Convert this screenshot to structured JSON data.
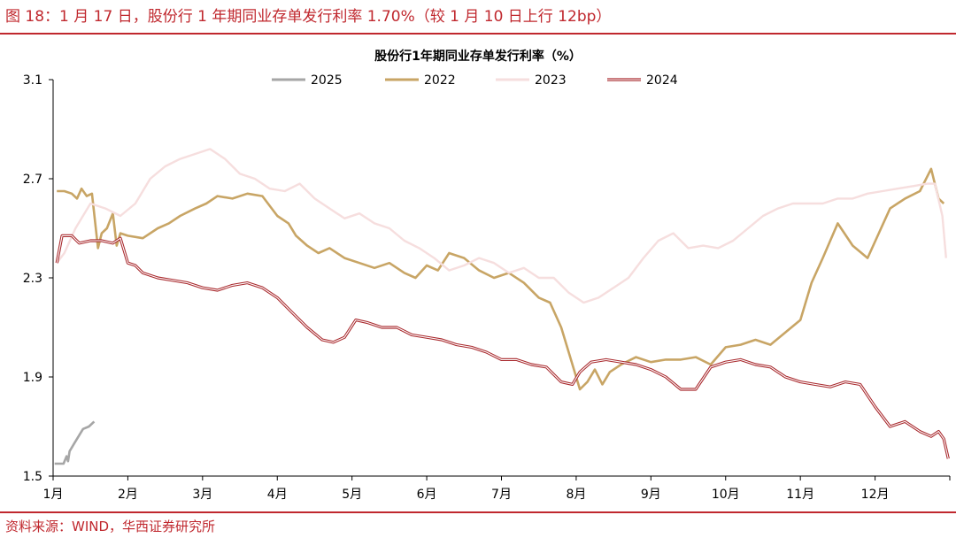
{
  "figure_title": "图 18：1 月 17 日，股份行 1 年期同业存单发行利率 1.70%（较 1 月 10 日上行 12bp）",
  "source": "资料来源：WIND，华西证券研究所",
  "colors": {
    "accent": "#c0282e",
    "s2025": "#a6a6a6",
    "s2022": "#c8a565",
    "s2023": "#f6dede",
    "s2024": "#a8282c"
  },
  "chart_data": {
    "type": "line",
    "title": "股份行1年期同业存单发行利率（%）",
    "xlabel": "",
    "ylabel": "",
    "ylim": [
      1.5,
      3.1
    ],
    "yticks": [
      "3.1",
      "2.7",
      "2.3",
      "1.9",
      "1.5"
    ],
    "ytick_values": [
      3.1,
      2.7,
      2.3,
      1.9,
      1.5
    ],
    "xlim": [
      0,
      12
    ],
    "xticks": [
      "1月",
      "2月",
      "3月",
      "4月",
      "5月",
      "6月",
      "7月",
      "8月",
      "9月",
      "10月",
      "11月",
      "12月"
    ],
    "xtick_values": [
      0,
      1,
      2,
      3,
      4,
      5,
      6,
      7,
      8,
      9,
      10,
      11
    ],
    "legend_position": "top",
    "grid": false,
    "series": [
      {
        "name": "2025",
        "color": "#a6a6a6",
        "style": "solid",
        "x": [
          0.02,
          0.08,
          0.14,
          0.18,
          0.2,
          0.22,
          0.28,
          0.34,
          0.4,
          0.48,
          0.55
        ],
        "y": [
          1.55,
          1.55,
          1.55,
          1.58,
          1.56,
          1.6,
          1.63,
          1.66,
          1.69,
          1.7,
          1.72
        ]
      },
      {
        "name": "2022",
        "color": "#c8a565",
        "style": "solid",
        "x": [
          0.05,
          0.15,
          0.25,
          0.32,
          0.38,
          0.45,
          0.52,
          0.6,
          0.65,
          0.72,
          0.8,
          0.85,
          0.9,
          1.0,
          1.2,
          1.4,
          1.55,
          1.7,
          1.9,
          2.05,
          2.2,
          2.4,
          2.6,
          2.8,
          3.0,
          3.15,
          3.25,
          3.4,
          3.55,
          3.7,
          3.9,
          4.1,
          4.3,
          4.5,
          4.7,
          4.85,
          5.0,
          5.15,
          5.3,
          5.5,
          5.7,
          5.9,
          6.1,
          6.3,
          6.5,
          6.65,
          6.8,
          6.95,
          7.05,
          7.15,
          7.25,
          7.35,
          7.45,
          7.6,
          7.8,
          8.0,
          8.2,
          8.4,
          8.6,
          8.8,
          9.0,
          9.2,
          9.4,
          9.6,
          9.8,
          10.0,
          10.15,
          10.3,
          10.5,
          10.7,
          10.9,
          11.05,
          11.2,
          11.4,
          11.6,
          11.75,
          11.85,
          11.92
        ],
        "y": [
          2.65,
          2.65,
          2.64,
          2.62,
          2.66,
          2.63,
          2.64,
          2.42,
          2.48,
          2.5,
          2.56,
          2.43,
          2.48,
          2.47,
          2.46,
          2.5,
          2.52,
          2.55,
          2.58,
          2.6,
          2.63,
          2.62,
          2.64,
          2.63,
          2.55,
          2.52,
          2.47,
          2.43,
          2.4,
          2.42,
          2.38,
          2.36,
          2.34,
          2.36,
          2.32,
          2.3,
          2.35,
          2.33,
          2.4,
          2.38,
          2.33,
          2.3,
          2.32,
          2.28,
          2.22,
          2.2,
          2.1,
          1.95,
          1.85,
          1.88,
          1.93,
          1.87,
          1.92,
          1.95,
          1.98,
          1.96,
          1.97,
          1.97,
          1.98,
          1.95,
          2.02,
          2.03,
          2.05,
          2.03,
          2.08,
          2.13,
          2.28,
          2.38,
          2.52,
          2.43,
          2.38,
          2.48,
          2.58,
          2.62,
          2.65,
          2.74,
          2.62,
          2.6
        ]
      },
      {
        "name": "2023",
        "color": "#f6dede",
        "style": "solid",
        "x": [
          0.05,
          0.15,
          0.3,
          0.5,
          0.7,
          0.9,
          1.1,
          1.3,
          1.5,
          1.7,
          1.9,
          2.1,
          2.3,
          2.5,
          2.7,
          2.9,
          3.1,
          3.3,
          3.5,
          3.7,
          3.9,
          4.1,
          4.3,
          4.5,
          4.7,
          4.9,
          5.1,
          5.3,
          5.5,
          5.7,
          5.9,
          6.1,
          6.3,
          6.5,
          6.7,
          6.9,
          7.1,
          7.3,
          7.5,
          7.7,
          7.9,
          8.1,
          8.3,
          8.5,
          8.7,
          8.9,
          9.1,
          9.3,
          9.5,
          9.7,
          9.9,
          10.1,
          10.3,
          10.5,
          10.7,
          10.9,
          11.1,
          11.3,
          11.5,
          11.7,
          11.8,
          11.9,
          11.95
        ],
        "y": [
          2.36,
          2.4,
          2.5,
          2.6,
          2.58,
          2.55,
          2.6,
          2.7,
          2.75,
          2.78,
          2.8,
          2.82,
          2.78,
          2.72,
          2.7,
          2.66,
          2.65,
          2.68,
          2.62,
          2.58,
          2.54,
          2.56,
          2.52,
          2.5,
          2.45,
          2.42,
          2.38,
          2.33,
          2.35,
          2.38,
          2.36,
          2.32,
          2.34,
          2.3,
          2.3,
          2.24,
          2.2,
          2.22,
          2.26,
          2.3,
          2.38,
          2.45,
          2.48,
          2.42,
          2.43,
          2.42,
          2.45,
          2.5,
          2.55,
          2.58,
          2.6,
          2.6,
          2.6,
          2.62,
          2.62,
          2.64,
          2.65,
          2.66,
          2.67,
          2.68,
          2.68,
          2.55,
          2.38
        ]
      },
      {
        "name": "2024",
        "color": "#a8282c",
        "style": "double",
        "x": [
          0.05,
          0.12,
          0.25,
          0.35,
          0.5,
          0.65,
          0.8,
          0.9,
          1.0,
          1.1,
          1.2,
          1.4,
          1.6,
          1.8,
          2.0,
          2.2,
          2.4,
          2.6,
          2.8,
          3.0,
          3.2,
          3.4,
          3.6,
          3.75,
          3.9,
          4.05,
          4.2,
          4.4,
          4.6,
          4.8,
          5.0,
          5.2,
          5.4,
          5.6,
          5.8,
          6.0,
          6.2,
          6.4,
          6.6,
          6.8,
          6.95,
          7.05,
          7.2,
          7.4,
          7.6,
          7.8,
          8.0,
          8.2,
          8.4,
          8.6,
          8.8,
          9.0,
          9.2,
          9.4,
          9.6,
          9.8,
          10.0,
          10.2,
          10.4,
          10.6,
          10.8,
          11.0,
          11.2,
          11.4,
          11.6,
          11.75,
          11.85,
          11.92,
          11.98
        ],
        "y": [
          2.36,
          2.47,
          2.47,
          2.44,
          2.45,
          2.45,
          2.44,
          2.46,
          2.36,
          2.35,
          2.32,
          2.3,
          2.29,
          2.28,
          2.26,
          2.25,
          2.27,
          2.28,
          2.26,
          2.22,
          2.16,
          2.1,
          2.05,
          2.04,
          2.06,
          2.13,
          2.12,
          2.1,
          2.1,
          2.07,
          2.06,
          2.05,
          2.03,
          2.02,
          2.0,
          1.97,
          1.97,
          1.95,
          1.94,
          1.88,
          1.87,
          1.92,
          1.96,
          1.97,
          1.96,
          1.95,
          1.93,
          1.9,
          1.85,
          1.85,
          1.94,
          1.96,
          1.97,
          1.95,
          1.94,
          1.9,
          1.88,
          1.87,
          1.86,
          1.88,
          1.87,
          1.78,
          1.7,
          1.72,
          1.68,
          1.66,
          1.68,
          1.65,
          1.57
        ]
      }
    ]
  }
}
